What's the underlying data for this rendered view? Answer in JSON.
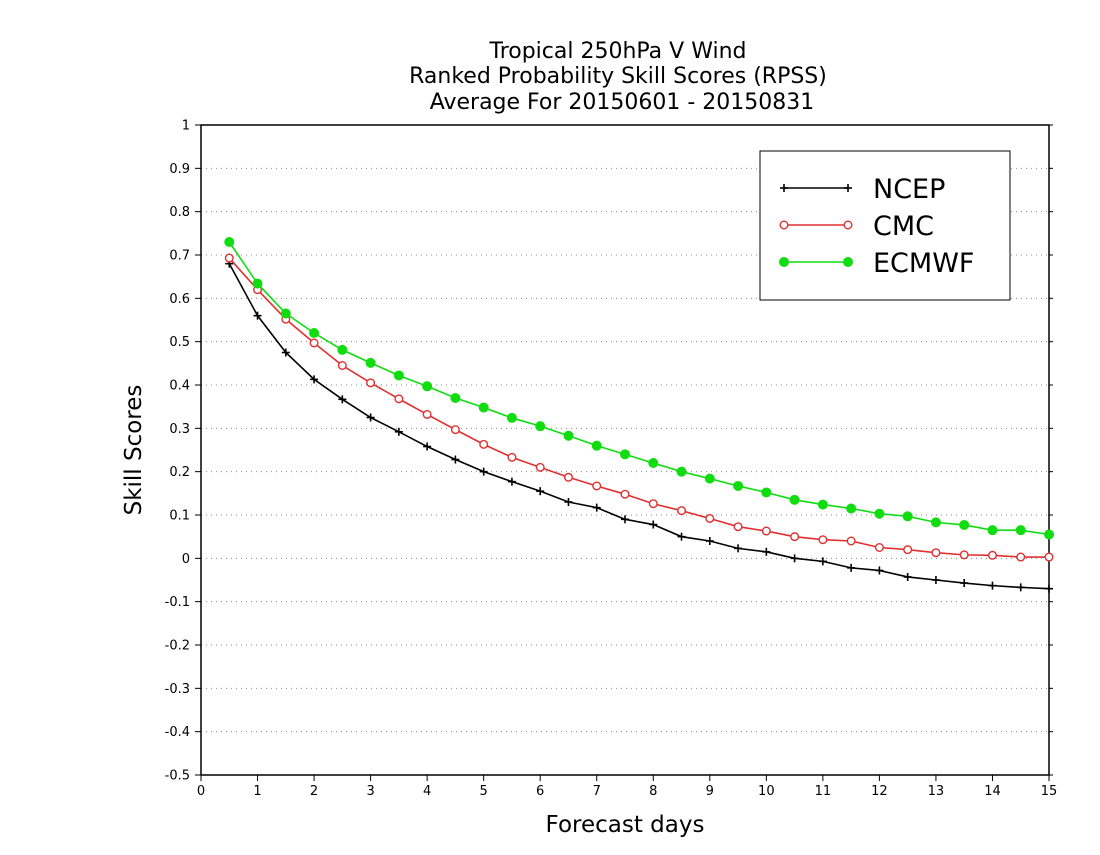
{
  "chart_data": {
    "type": "line",
    "title": "Tropical 250hPa V Wind",
    "subtitle_lines": [
      "Ranked Probability Skill Scores (RPSS)",
      "Average For 20150601 - 20150831"
    ],
    "xlabel": "Forecast days",
    "ylabel": "Skill Scores",
    "xlim": [
      0,
      15
    ],
    "ylim": [
      -0.5,
      1
    ],
    "x_ticks": [
      "0",
      "1",
      "2",
      "3",
      "4",
      "5",
      "6",
      "7",
      "8",
      "9",
      "10",
      "11",
      "12",
      "13",
      "14",
      "15"
    ],
    "y_ticks": [
      "-0.5",
      "-0.4",
      "-0.3",
      "-0.2",
      "-0.1",
      "0",
      "0.1",
      "0.2",
      "0.3",
      "0.4",
      "0.5",
      "0.6",
      "0.7",
      "0.8",
      "0.9",
      "1"
    ],
    "grid": "dotted horizontal",
    "legend_position": "top-right",
    "x": [
      0.5,
      1,
      1.5,
      2,
      2.5,
      3,
      3.5,
      4,
      4.5,
      5,
      5.5,
      6,
      6.5,
      7,
      7.5,
      8,
      8.5,
      9,
      9.5,
      10,
      10.5,
      11,
      11.5,
      12,
      12.5,
      13,
      13.5,
      14,
      14.5,
      15
    ],
    "series": [
      {
        "name": "NCEP",
        "color": "#000000",
        "marker": "plus",
        "values": [
          0.68,
          0.56,
          0.475,
          0.413,
          0.367,
          0.325,
          0.292,
          0.258,
          0.228,
          0.2,
          0.177,
          0.155,
          0.13,
          0.117,
          0.09,
          0.078,
          0.05,
          0.04,
          0.023,
          0.015,
          0.0,
          -0.007,
          -0.022,
          -0.028,
          -0.043,
          -0.05,
          -0.057,
          -0.063,
          -0.067,
          -0.07
        ]
      },
      {
        "name": "CMC",
        "color": "#e03030",
        "marker": "open-circle",
        "values": [
          0.693,
          0.62,
          0.552,
          0.497,
          0.445,
          0.405,
          0.368,
          0.332,
          0.297,
          0.263,
          0.233,
          0.21,
          0.187,
          0.167,
          0.148,
          0.126,
          0.11,
          0.092,
          0.073,
          0.063,
          0.05,
          0.043,
          0.04,
          0.025,
          0.02,
          0.013,
          0.008,
          0.007,
          0.003,
          0.003
        ]
      },
      {
        "name": "ECMWF",
        "color": "#10dd10",
        "marker": "filled-circle",
        "values": [
          0.73,
          0.634,
          0.565,
          0.52,
          0.481,
          0.451,
          0.422,
          0.397,
          0.37,
          0.348,
          0.324,
          0.305,
          0.283,
          0.26,
          0.24,
          0.22,
          0.2,
          0.184,
          0.167,
          0.152,
          0.135,
          0.124,
          0.115,
          0.103,
          0.097,
          0.083,
          0.077,
          0.065,
          0.065,
          0.055
        ]
      }
    ]
  }
}
